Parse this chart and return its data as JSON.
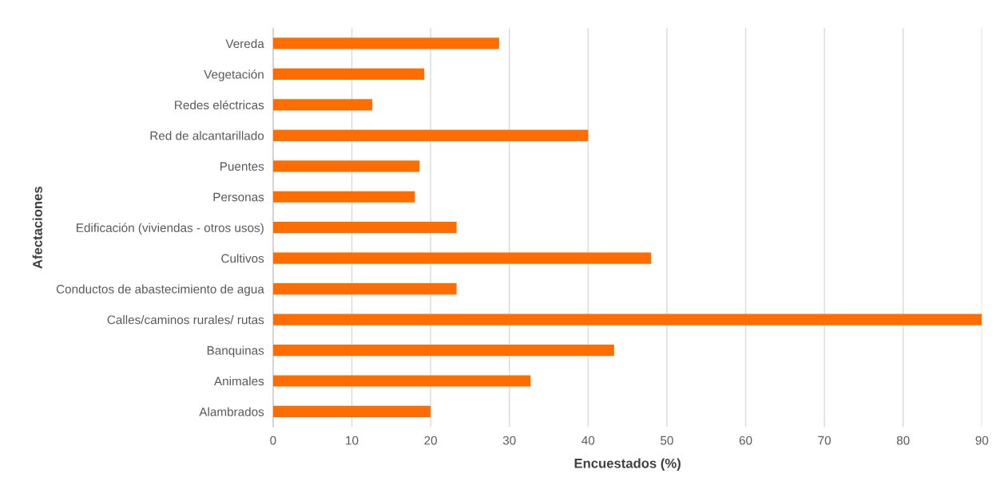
{
  "chart_data": {
    "type": "bar",
    "orientation": "horizontal",
    "xlabel": "Encuestados (%)",
    "ylabel": "Afectaciones",
    "categories": [
      "Vereda",
      "Vegetación",
      "Redes eléctricas",
      "Red de alcantarillado",
      "Puentes",
      "Personas",
      "Edificación (viviendas - otros usos)",
      "Cultivos",
      "Conductos de abastecimiento de agua",
      "Calles/caminos rurales/ rutas",
      "Banquinas",
      "Animales",
      "Alambrados"
    ],
    "values": [
      28.7,
      19.2,
      12.6,
      40.0,
      18.6,
      18.0,
      23.3,
      48.0,
      23.3,
      90.0,
      43.3,
      32.7,
      20.0
    ],
    "color": "#ff6d00",
    "xlim": [
      0,
      90
    ],
    "xticks": [
      0,
      10,
      20,
      30,
      40,
      50,
      60,
      70,
      80,
      90
    ],
    "grid": "x",
    "legend": false
  }
}
